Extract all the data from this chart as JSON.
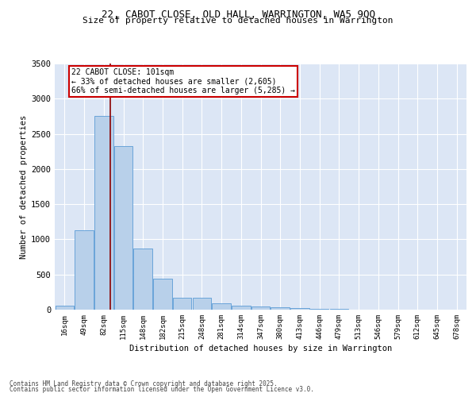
{
  "title_line1": "22, CABOT CLOSE, OLD HALL, WARRINGTON, WA5 9QQ",
  "title_line2": "Size of property relative to detached houses in Warrington",
  "xlabel": "Distribution of detached houses by size in Warrington",
  "ylabel": "Number of detached properties",
  "categories": [
    "16sqm",
    "49sqm",
    "82sqm",
    "115sqm",
    "148sqm",
    "182sqm",
    "215sqm",
    "248sqm",
    "281sqm",
    "314sqm",
    "347sqm",
    "380sqm",
    "413sqm",
    "446sqm",
    "479sqm",
    "513sqm",
    "546sqm",
    "579sqm",
    "612sqm",
    "645sqm",
    "678sqm"
  ],
  "values": [
    55,
    1130,
    2760,
    2330,
    870,
    440,
    170,
    165,
    90,
    60,
    45,
    35,
    25,
    10,
    10,
    0,
    0,
    0,
    0,
    0,
    0
  ],
  "bar_color": "#b8d0ea",
  "bar_edge_color": "#5b9bd5",
  "background_color": "#dce6f5",
  "grid_color": "#ffffff",
  "vline_x": 2.35,
  "vline_color": "#8b0000",
  "annotation_text": "22 CABOT CLOSE: 101sqm\n← 33% of detached houses are smaller (2,605)\n66% of semi-detached houses are larger (5,285) →",
  "annotation_box_color": "#ffffff",
  "annotation_box_edge": "#cc0000",
  "footer_line1": "Contains HM Land Registry data © Crown copyright and database right 2025.",
  "footer_line2": "Contains public sector information licensed under the Open Government Licence v3.0.",
  "ylim": [
    0,
    3500
  ],
  "yticks": [
    0,
    500,
    1000,
    1500,
    2000,
    2500,
    3000,
    3500
  ]
}
